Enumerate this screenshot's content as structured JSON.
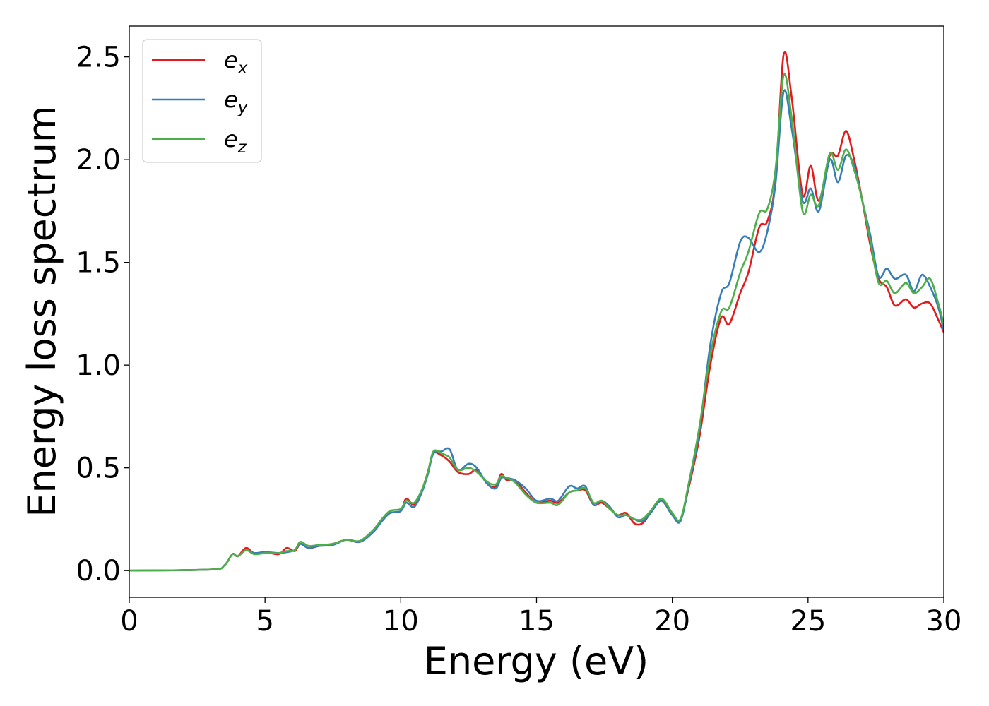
{
  "chart_data": {
    "type": "line",
    "title": "",
    "xlabel": "Energy (eV)",
    "ylabel": "Energy loss spectrum",
    "xlim": [
      0,
      30
    ],
    "ylim": [
      -0.13,
      2.65
    ],
    "xticks": [
      0,
      5,
      10,
      15,
      20,
      25,
      30
    ],
    "xtick_labels": [
      "0",
      "5",
      "10",
      "15",
      "20",
      "25",
      "30"
    ],
    "yticks": [
      0.0,
      0.5,
      1.0,
      1.5,
      2.0,
      2.5
    ],
    "ytick_labels": [
      "0.0",
      "0.5",
      "1.0",
      "1.5",
      "2.0",
      "2.5"
    ],
    "grid": false,
    "legend_position": "top-left",
    "series": [
      {
        "name": "e_x",
        "legend_base": "e",
        "legend_sub": "x",
        "color": "#e41a1c",
        "points": [
          [
            0,
            0
          ],
          [
            3,
            0.005
          ],
          [
            3.5,
            0.025
          ],
          [
            3.8,
            0.08
          ],
          [
            4,
            0.07
          ],
          [
            4.3,
            0.11
          ],
          [
            4.6,
            0.085
          ],
          [
            5,
            0.09
          ],
          [
            5.5,
            0.08
          ],
          [
            5.8,
            0.11
          ],
          [
            6.1,
            0.095
          ],
          [
            6.3,
            0.13
          ],
          [
            6.6,
            0.11
          ],
          [
            7,
            0.12
          ],
          [
            7.5,
            0.13
          ],
          [
            8,
            0.15
          ],
          [
            8.5,
            0.14
          ],
          [
            9,
            0.19
          ],
          [
            9.3,
            0.24
          ],
          [
            9.6,
            0.28
          ],
          [
            10,
            0.29
          ],
          [
            10.2,
            0.35
          ],
          [
            10.5,
            0.32
          ],
          [
            10.8,
            0.4
          ],
          [
            11,
            0.48
          ],
          [
            11.2,
            0.57
          ],
          [
            11.5,
            0.56
          ],
          [
            11.8,
            0.53
          ],
          [
            12.1,
            0.48
          ],
          [
            12.5,
            0.47
          ],
          [
            12.8,
            0.49
          ],
          [
            13.2,
            0.42
          ],
          [
            13.5,
            0.41
          ],
          [
            13.7,
            0.47
          ],
          [
            13.9,
            0.44
          ],
          [
            14.2,
            0.44
          ],
          [
            14.6,
            0.38
          ],
          [
            15,
            0.33
          ],
          [
            15.5,
            0.34
          ],
          [
            15.8,
            0.33
          ],
          [
            16.2,
            0.38
          ],
          [
            16.5,
            0.39
          ],
          [
            16.8,
            0.39
          ],
          [
            17.1,
            0.32
          ],
          [
            17.4,
            0.33
          ],
          [
            17.7,
            0.3
          ],
          [
            18,
            0.27
          ],
          [
            18.3,
            0.28
          ],
          [
            18.6,
            0.23
          ],
          [
            18.9,
            0.23
          ],
          [
            19.2,
            0.28
          ],
          [
            19.6,
            0.34
          ],
          [
            20,
            0.27
          ],
          [
            20.3,
            0.25
          ],
          [
            20.6,
            0.4
          ],
          [
            21,
            0.65
          ],
          [
            21.4,
            1.0
          ],
          [
            21.8,
            1.23
          ],
          [
            22.1,
            1.2
          ],
          [
            22.5,
            1.35
          ],
          [
            22.8,
            1.45
          ],
          [
            23.2,
            1.67
          ],
          [
            23.5,
            1.7
          ],
          [
            23.8,
            1.9
          ],
          [
            24.1,
            2.51
          ],
          [
            24.4,
            2.3
          ],
          [
            24.8,
            1.83
          ],
          [
            25.1,
            1.97
          ],
          [
            25.4,
            1.8
          ],
          [
            25.8,
            2.02
          ],
          [
            26.1,
            2.02
          ],
          [
            26.4,
            2.14
          ],
          [
            26.7,
            2.0
          ],
          [
            27,
            1.8
          ],
          [
            27.3,
            1.58
          ],
          [
            27.6,
            1.42
          ],
          [
            27.9,
            1.38
          ],
          [
            28.2,
            1.29
          ],
          [
            28.6,
            1.32
          ],
          [
            28.9,
            1.28
          ],
          [
            29.2,
            1.3
          ],
          [
            29.5,
            1.3
          ],
          [
            29.8,
            1.22
          ],
          [
            30,
            1.16
          ]
        ]
      },
      {
        "name": "e_y",
        "legend_base": "e",
        "legend_sub": "y",
        "color": "#377eb8",
        "points": [
          [
            0,
            0
          ],
          [
            3,
            0.005
          ],
          [
            3.5,
            0.025
          ],
          [
            3.8,
            0.08
          ],
          [
            4,
            0.07
          ],
          [
            4.3,
            0.1
          ],
          [
            4.6,
            0.085
          ],
          [
            5,
            0.09
          ],
          [
            5.5,
            0.085
          ],
          [
            5.8,
            0.09
          ],
          [
            6.1,
            0.1
          ],
          [
            6.3,
            0.13
          ],
          [
            6.6,
            0.11
          ],
          [
            7,
            0.12
          ],
          [
            7.5,
            0.125
          ],
          [
            8,
            0.15
          ],
          [
            8.5,
            0.14
          ],
          [
            9,
            0.19
          ],
          [
            9.3,
            0.24
          ],
          [
            9.6,
            0.28
          ],
          [
            10,
            0.29
          ],
          [
            10.2,
            0.33
          ],
          [
            10.5,
            0.31
          ],
          [
            10.8,
            0.39
          ],
          [
            11,
            0.47
          ],
          [
            11.2,
            0.57
          ],
          [
            11.5,
            0.58
          ],
          [
            11.8,
            0.59
          ],
          [
            12.1,
            0.49
          ],
          [
            12.5,
            0.52
          ],
          [
            12.8,
            0.5
          ],
          [
            13.2,
            0.42
          ],
          [
            13.5,
            0.4
          ],
          [
            13.7,
            0.45
          ],
          [
            13.9,
            0.45
          ],
          [
            14.2,
            0.44
          ],
          [
            14.6,
            0.4
          ],
          [
            15,
            0.34
          ],
          [
            15.5,
            0.35
          ],
          [
            15.8,
            0.34
          ],
          [
            16.2,
            0.41
          ],
          [
            16.5,
            0.4
          ],
          [
            16.8,
            0.41
          ],
          [
            17.1,
            0.32
          ],
          [
            17.4,
            0.34
          ],
          [
            17.7,
            0.31
          ],
          [
            18,
            0.26
          ],
          [
            18.3,
            0.27
          ],
          [
            18.6,
            0.25
          ],
          [
            18.9,
            0.24
          ],
          [
            19.2,
            0.28
          ],
          [
            19.6,
            0.34
          ],
          [
            20,
            0.27
          ],
          [
            20.3,
            0.24
          ],
          [
            20.6,
            0.41
          ],
          [
            21,
            0.68
          ],
          [
            21.4,
            1.1
          ],
          [
            21.8,
            1.35
          ],
          [
            22.1,
            1.4
          ],
          [
            22.5,
            1.6
          ],
          [
            22.8,
            1.62
          ],
          [
            23.2,
            1.55
          ],
          [
            23.5,
            1.65
          ],
          [
            23.8,
            1.88
          ],
          [
            24.1,
            2.33
          ],
          [
            24.4,
            2.15
          ],
          [
            24.8,
            1.8
          ],
          [
            25.1,
            1.86
          ],
          [
            25.4,
            1.75
          ],
          [
            25.8,
            2.0
          ],
          [
            26.1,
            1.89
          ],
          [
            26.4,
            2.02
          ],
          [
            26.7,
            1.97
          ],
          [
            27,
            1.8
          ],
          [
            27.3,
            1.63
          ],
          [
            27.6,
            1.43
          ],
          [
            27.9,
            1.47
          ],
          [
            28.2,
            1.42
          ],
          [
            28.6,
            1.44
          ],
          [
            28.9,
            1.36
          ],
          [
            29.2,
            1.44
          ],
          [
            29.5,
            1.38
          ],
          [
            29.8,
            1.28
          ],
          [
            30,
            1.17
          ]
        ]
      },
      {
        "name": "e_z",
        "legend_base": "e",
        "legend_sub": "z",
        "color": "#4daf4a",
        "points": [
          [
            0,
            0
          ],
          [
            3,
            0.005
          ],
          [
            3.5,
            0.025
          ],
          [
            3.8,
            0.08
          ],
          [
            4,
            0.07
          ],
          [
            4.3,
            0.1
          ],
          [
            4.6,
            0.08
          ],
          [
            5,
            0.085
          ],
          [
            5.5,
            0.085
          ],
          [
            5.8,
            0.095
          ],
          [
            6.1,
            0.1
          ],
          [
            6.3,
            0.14
          ],
          [
            6.6,
            0.12
          ],
          [
            7,
            0.125
          ],
          [
            7.5,
            0.13
          ],
          [
            8,
            0.15
          ],
          [
            8.5,
            0.145
          ],
          [
            9,
            0.2
          ],
          [
            9.3,
            0.25
          ],
          [
            9.6,
            0.29
          ],
          [
            10,
            0.3
          ],
          [
            10.2,
            0.34
          ],
          [
            10.5,
            0.33
          ],
          [
            10.8,
            0.4
          ],
          [
            11,
            0.48
          ],
          [
            11.2,
            0.58
          ],
          [
            11.5,
            0.57
          ],
          [
            11.8,
            0.55
          ],
          [
            12.1,
            0.49
          ],
          [
            12.5,
            0.5
          ],
          [
            12.8,
            0.48
          ],
          [
            13.2,
            0.43
          ],
          [
            13.5,
            0.42
          ],
          [
            13.7,
            0.46
          ],
          [
            13.9,
            0.45
          ],
          [
            14.2,
            0.43
          ],
          [
            14.6,
            0.37
          ],
          [
            15,
            0.33
          ],
          [
            15.5,
            0.33
          ],
          [
            15.8,
            0.32
          ],
          [
            16.2,
            0.38
          ],
          [
            16.5,
            0.39
          ],
          [
            16.8,
            0.4
          ],
          [
            17.1,
            0.33
          ],
          [
            17.4,
            0.34
          ],
          [
            17.7,
            0.3
          ],
          [
            18,
            0.27
          ],
          [
            18.3,
            0.27
          ],
          [
            18.6,
            0.25
          ],
          [
            18.9,
            0.25
          ],
          [
            19.2,
            0.29
          ],
          [
            19.6,
            0.35
          ],
          [
            20,
            0.28
          ],
          [
            20.3,
            0.25
          ],
          [
            20.6,
            0.42
          ],
          [
            21,
            0.7
          ],
          [
            21.4,
            1.05
          ],
          [
            21.8,
            1.26
          ],
          [
            22.1,
            1.28
          ],
          [
            22.5,
            1.45
          ],
          [
            22.8,
            1.55
          ],
          [
            23.2,
            1.74
          ],
          [
            23.5,
            1.76
          ],
          [
            23.8,
            1.95
          ],
          [
            24.1,
            2.41
          ],
          [
            24.4,
            2.2
          ],
          [
            24.8,
            1.75
          ],
          [
            25.1,
            1.83
          ],
          [
            25.4,
            1.78
          ],
          [
            25.8,
            2.03
          ],
          [
            26.1,
            1.95
          ],
          [
            26.4,
            2.05
          ],
          [
            26.7,
            1.95
          ],
          [
            27,
            1.8
          ],
          [
            27.3,
            1.6
          ],
          [
            27.6,
            1.4
          ],
          [
            27.9,
            1.41
          ],
          [
            28.2,
            1.35
          ],
          [
            28.6,
            1.4
          ],
          [
            28.9,
            1.35
          ],
          [
            29.2,
            1.38
          ],
          [
            29.5,
            1.42
          ],
          [
            29.8,
            1.3
          ],
          [
            30,
            1.2
          ]
        ]
      }
    ]
  }
}
